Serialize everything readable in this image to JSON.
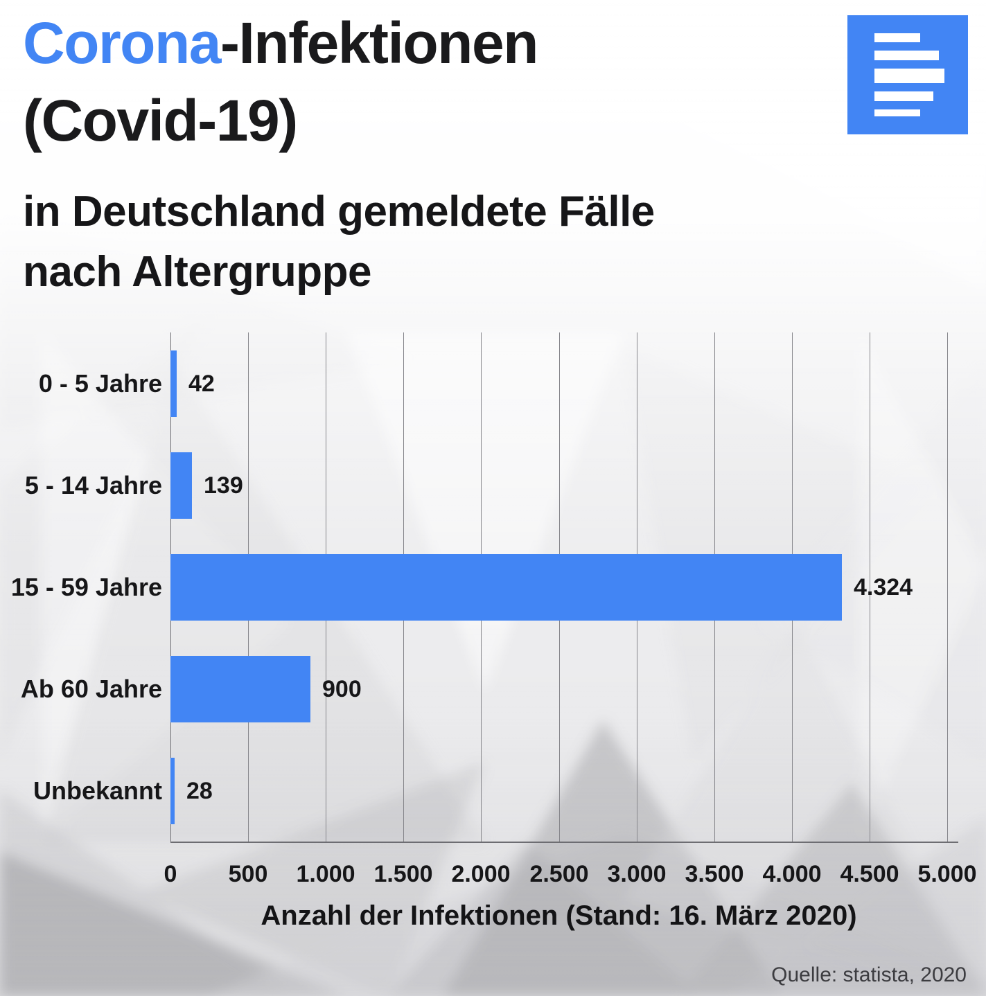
{
  "header": {
    "title_accent": "Corona",
    "title_rest": "-Infektionen",
    "title_line2": "(Covid-19)",
    "subtitle_line1": "in Deutschland gemeldete Fälle",
    "subtitle_line2": "nach Altergruppe"
  },
  "icon": {
    "name": "statista-chart-logo-icon",
    "background": "#4285F4",
    "bar_color": "#ffffff"
  },
  "chart_data": {
    "type": "bar",
    "orientation": "horizontal",
    "title": "Corona-Infektionen (Covid-19)",
    "subtitle": "in Deutschland gemeldete Fälle nach Altergruppe",
    "categories": [
      "0 - 5 Jahre",
      "5 - 14 Jahre",
      "15 - 59 Jahre",
      "Ab 60 Jahre",
      "Unbekannt"
    ],
    "values": [
      42,
      139,
      4324,
      900,
      28
    ],
    "value_labels": [
      "42",
      "139",
      "4.324",
      "900",
      "28"
    ],
    "xlabel": "Anzahl der Infektionen (Stand: 16. März 2020)",
    "ylabel": "",
    "xlim": [
      0,
      5000
    ],
    "xticks": [
      0,
      500,
      1000,
      1500,
      2000,
      2500,
      3000,
      3500,
      4000,
      4500,
      5000
    ],
    "xtick_labels": [
      "0",
      "500",
      "1.000",
      "1.500",
      "2.000",
      "2.500",
      "3.000",
      "3.500",
      "4.000",
      "4.500",
      "5.000"
    ],
    "grid": true,
    "legend": false,
    "bar_color": "#4285F4"
  },
  "footer": {
    "source": "Quelle: statista, 2020"
  },
  "colors": {
    "accent_blue": "#4285F4",
    "text_dark": "#161618",
    "grid_line": "#86868b",
    "axis_line": "#6d6d72",
    "source_text": "#3c3c40",
    "background": "#ebebed"
  }
}
